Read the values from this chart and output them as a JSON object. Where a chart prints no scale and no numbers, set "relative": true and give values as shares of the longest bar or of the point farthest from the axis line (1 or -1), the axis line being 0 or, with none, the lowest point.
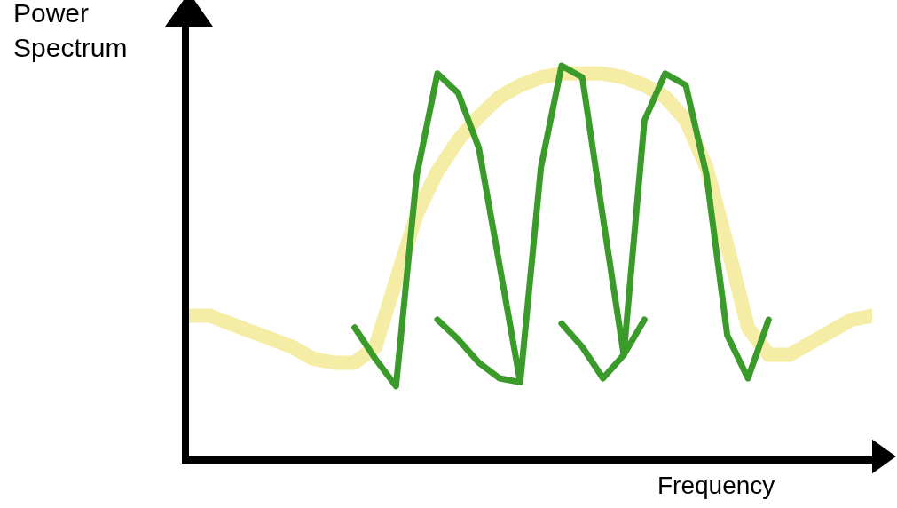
{
  "chart_data": {
    "type": "line",
    "relative": true,
    "xlabel": "Frequency",
    "ylabel": "Power Spectrum",
    "marker": "none",
    "categories": [
      null,
      null,
      null,
      null,
      null,
      null,
      null,
      null,
      null,
      null,
      null,
      null,
      null,
      null,
      null,
      null,
      null,
      null,
      null,
      null,
      null,
      null,
      null,
      null,
      null,
      null,
      null,
      null,
      null,
      null,
      null,
      null,
      null,
      null
    ],
    "series": [
      {
        "color": "#f5eda5",
        "values": [
          0.36,
          0.36,
          0.34,
          0.32,
          0.3,
          0.28,
          0.25,
          0.24,
          0.24,
          0.28,
          0.45,
          0.62,
          0.73,
          0.81,
          0.87,
          0.92,
          0.95,
          0.97,
          0.98,
          0.98,
          0.98,
          0.97,
          0.95,
          0.92,
          0.86,
          0.74,
          0.54,
          0.33,
          0.26,
          0.26,
          0.29,
          0.32,
          0.35,
          0.36
        ]
      },
      {
        "color": "#3a9a2a",
        "values": [
          null,
          null,
          null,
          null,
          null,
          null,
          null,
          null,
          0.33,
          0.25,
          0.18,
          0.72,
          0.98,
          0.93,
          0.79,
          0.49,
          0.19,
          0.74,
          1,
          0.97,
          0.61,
          0.26,
          0.86,
          0.98,
          0.95,
          0.72,
          0.31,
          0.2,
          0.35,
          null,
          null,
          null,
          null,
          null
        ]
      },
      {
        "color": "#3a9a2a",
        "values": [
          null,
          null,
          null,
          null,
          null,
          null,
          null,
          null,
          null,
          null,
          null,
          null,
          0.35,
          0.3,
          0.24,
          0.2,
          0.19,
          null,
          0.34,
          0.28,
          0.2,
          0.26,
          0.35,
          null,
          null,
          null,
          null,
          null,
          null,
          null,
          null,
          null,
          null,
          null
        ]
      }
    ]
  }
}
